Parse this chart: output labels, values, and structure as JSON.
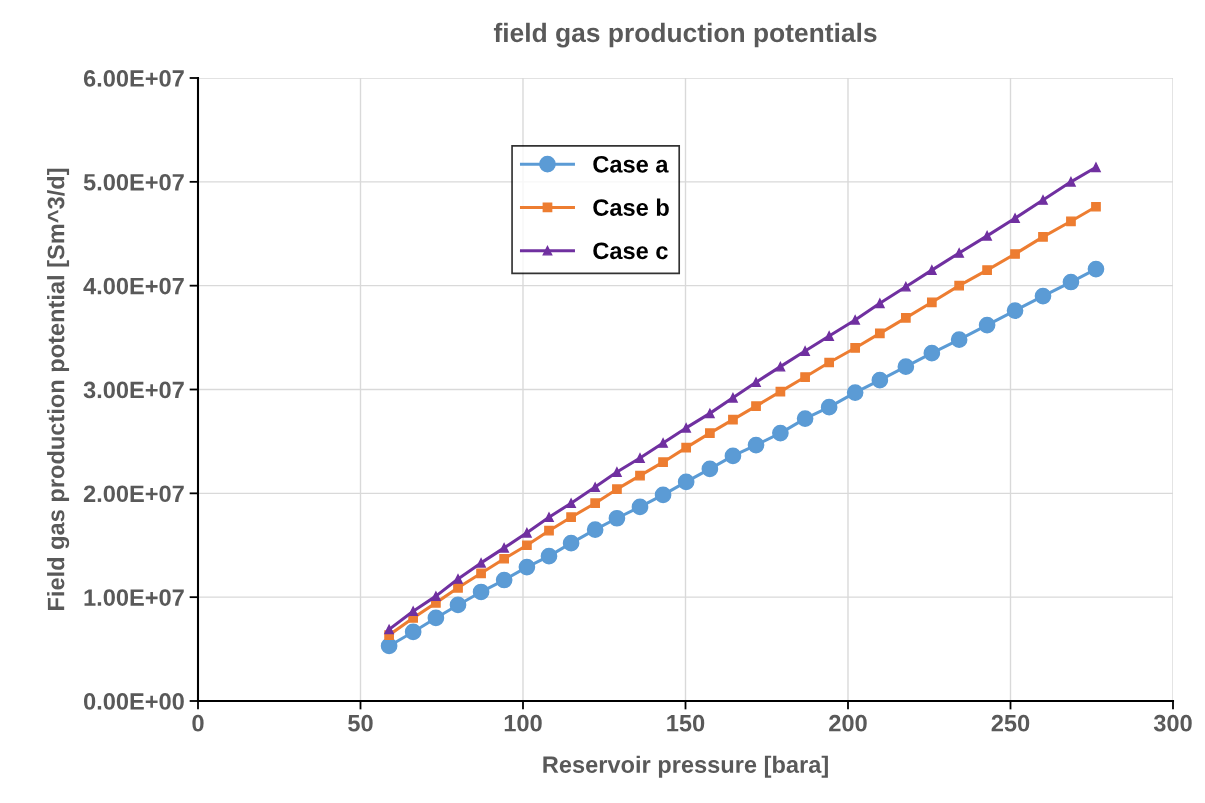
{
  "chart_data": {
    "type": "line",
    "title": "field gas production potentials",
    "xlabel": "Reservoir pressure [bara]",
    "ylabel": "Field gas production potential [Sm^3/d]",
    "x": [
      58.8,
      66.2,
      73.2,
      80.0,
      87.1,
      94.2,
      101.2,
      108.0,
      114.8,
      122.2,
      128.9,
      136.0,
      143.1,
      150.2,
      157.5,
      164.6,
      171.7,
      179.2,
      186.8,
      194.2,
      202.2,
      209.8,
      217.8,
      225.8,
      234.2,
      242.8,
      251.4,
      260.0,
      268.6,
      276.3
    ],
    "series": [
      {
        "name": "Case a",
        "color": "#5b9bd5",
        "marker": "circle",
        "values": [
          5300000,
          6650000,
          8000000,
          9250000,
          10500000,
          11650000,
          12900000,
          13950000,
          15200000,
          16500000,
          17600000,
          18700000,
          19850000,
          21100000,
          22350000,
          23600000,
          24650000,
          25800000,
          27200000,
          28300000,
          29700000,
          30900000,
          32200000,
          33500000,
          34800000,
          36200000,
          37600000,
          39000000,
          40350000,
          41600000
        ]
      },
      {
        "name": "Case b",
        "color": "#ed7d31",
        "marker": "square",
        "values": [
          6350000,
          8000000,
          9450000,
          10900000,
          12300000,
          13700000,
          15000000,
          16400000,
          17700000,
          19050000,
          20400000,
          21700000,
          23000000,
          24400000,
          25800000,
          27100000,
          28400000,
          29800000,
          31200000,
          32600000,
          34000000,
          35400000,
          36900000,
          38400000,
          40000000,
          41500000,
          43050000,
          44700000,
          46200000,
          47600000
        ]
      },
      {
        "name": "Case c",
        "color": "#7030a0",
        "marker": "triangle",
        "values": [
          6900000,
          8650000,
          10100000,
          11750000,
          13300000,
          14750000,
          16200000,
          17700000,
          19050000,
          20600000,
          22050000,
          23400000,
          24850000,
          26300000,
          27700000,
          29200000,
          30700000,
          32200000,
          33700000,
          35150000,
          36700000,
          38300000,
          39900000,
          41500000,
          43150000,
          44800000,
          46500000,
          48250000,
          50000000,
          51400000
        ]
      }
    ],
    "xlim": [
      0,
      300
    ],
    "xticks": [
      0,
      50,
      100,
      150,
      200,
      250,
      300
    ],
    "ylim": [
      0,
      60000000
    ],
    "yticks": [
      {
        "value": 0,
        "label": "0.00E+00"
      },
      {
        "value": 10000000,
        "label": "1.00E+07"
      },
      {
        "value": 20000000,
        "label": "2.00E+07"
      },
      {
        "value": 30000000,
        "label": "3.00E+07"
      },
      {
        "value": 40000000,
        "label": "4.00E+07"
      },
      {
        "value": 50000000,
        "label": "5.00E+07"
      },
      {
        "value": 60000000,
        "label": "6.00E+07"
      }
    ],
    "grid": true,
    "legend": "top left",
    "line_style": "solid"
  }
}
